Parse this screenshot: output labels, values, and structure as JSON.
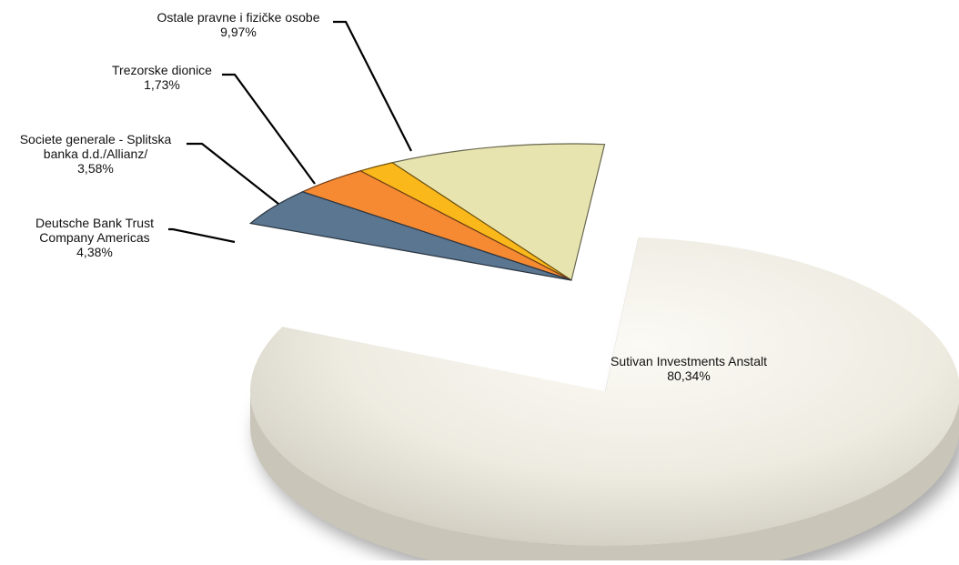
{
  "chart_data": {
    "type": "pie",
    "title": "",
    "slices": [
      {
        "label_lines": [
          "Sutivan Investments Anstalt"
        ],
        "value": 80.34,
        "value_label": "80,34%",
        "color": "#ebe7dc"
      },
      {
        "label_lines": [
          "Deutsche Bank Trust",
          "Company Americas"
        ],
        "value": 4.38,
        "value_label": "4,38%",
        "color": "#5b7690"
      },
      {
        "label_lines": [
          "Societe generale - Splitska",
          "banka d.d./Allianz/"
        ],
        "value": 3.58,
        "value_label": "3,58%",
        "color": "#f58a33"
      },
      {
        "label_lines": [
          "Trezorske dionice"
        ],
        "value": 1.73,
        "value_label": "1,73%",
        "color": "#fbb81b"
      },
      {
        "label_lines": [
          "Ostale pravne i fizičke osobe"
        ],
        "value": 9.97,
        "value_label": "9,97%",
        "color": "#e8e4b0"
      }
    ]
  }
}
